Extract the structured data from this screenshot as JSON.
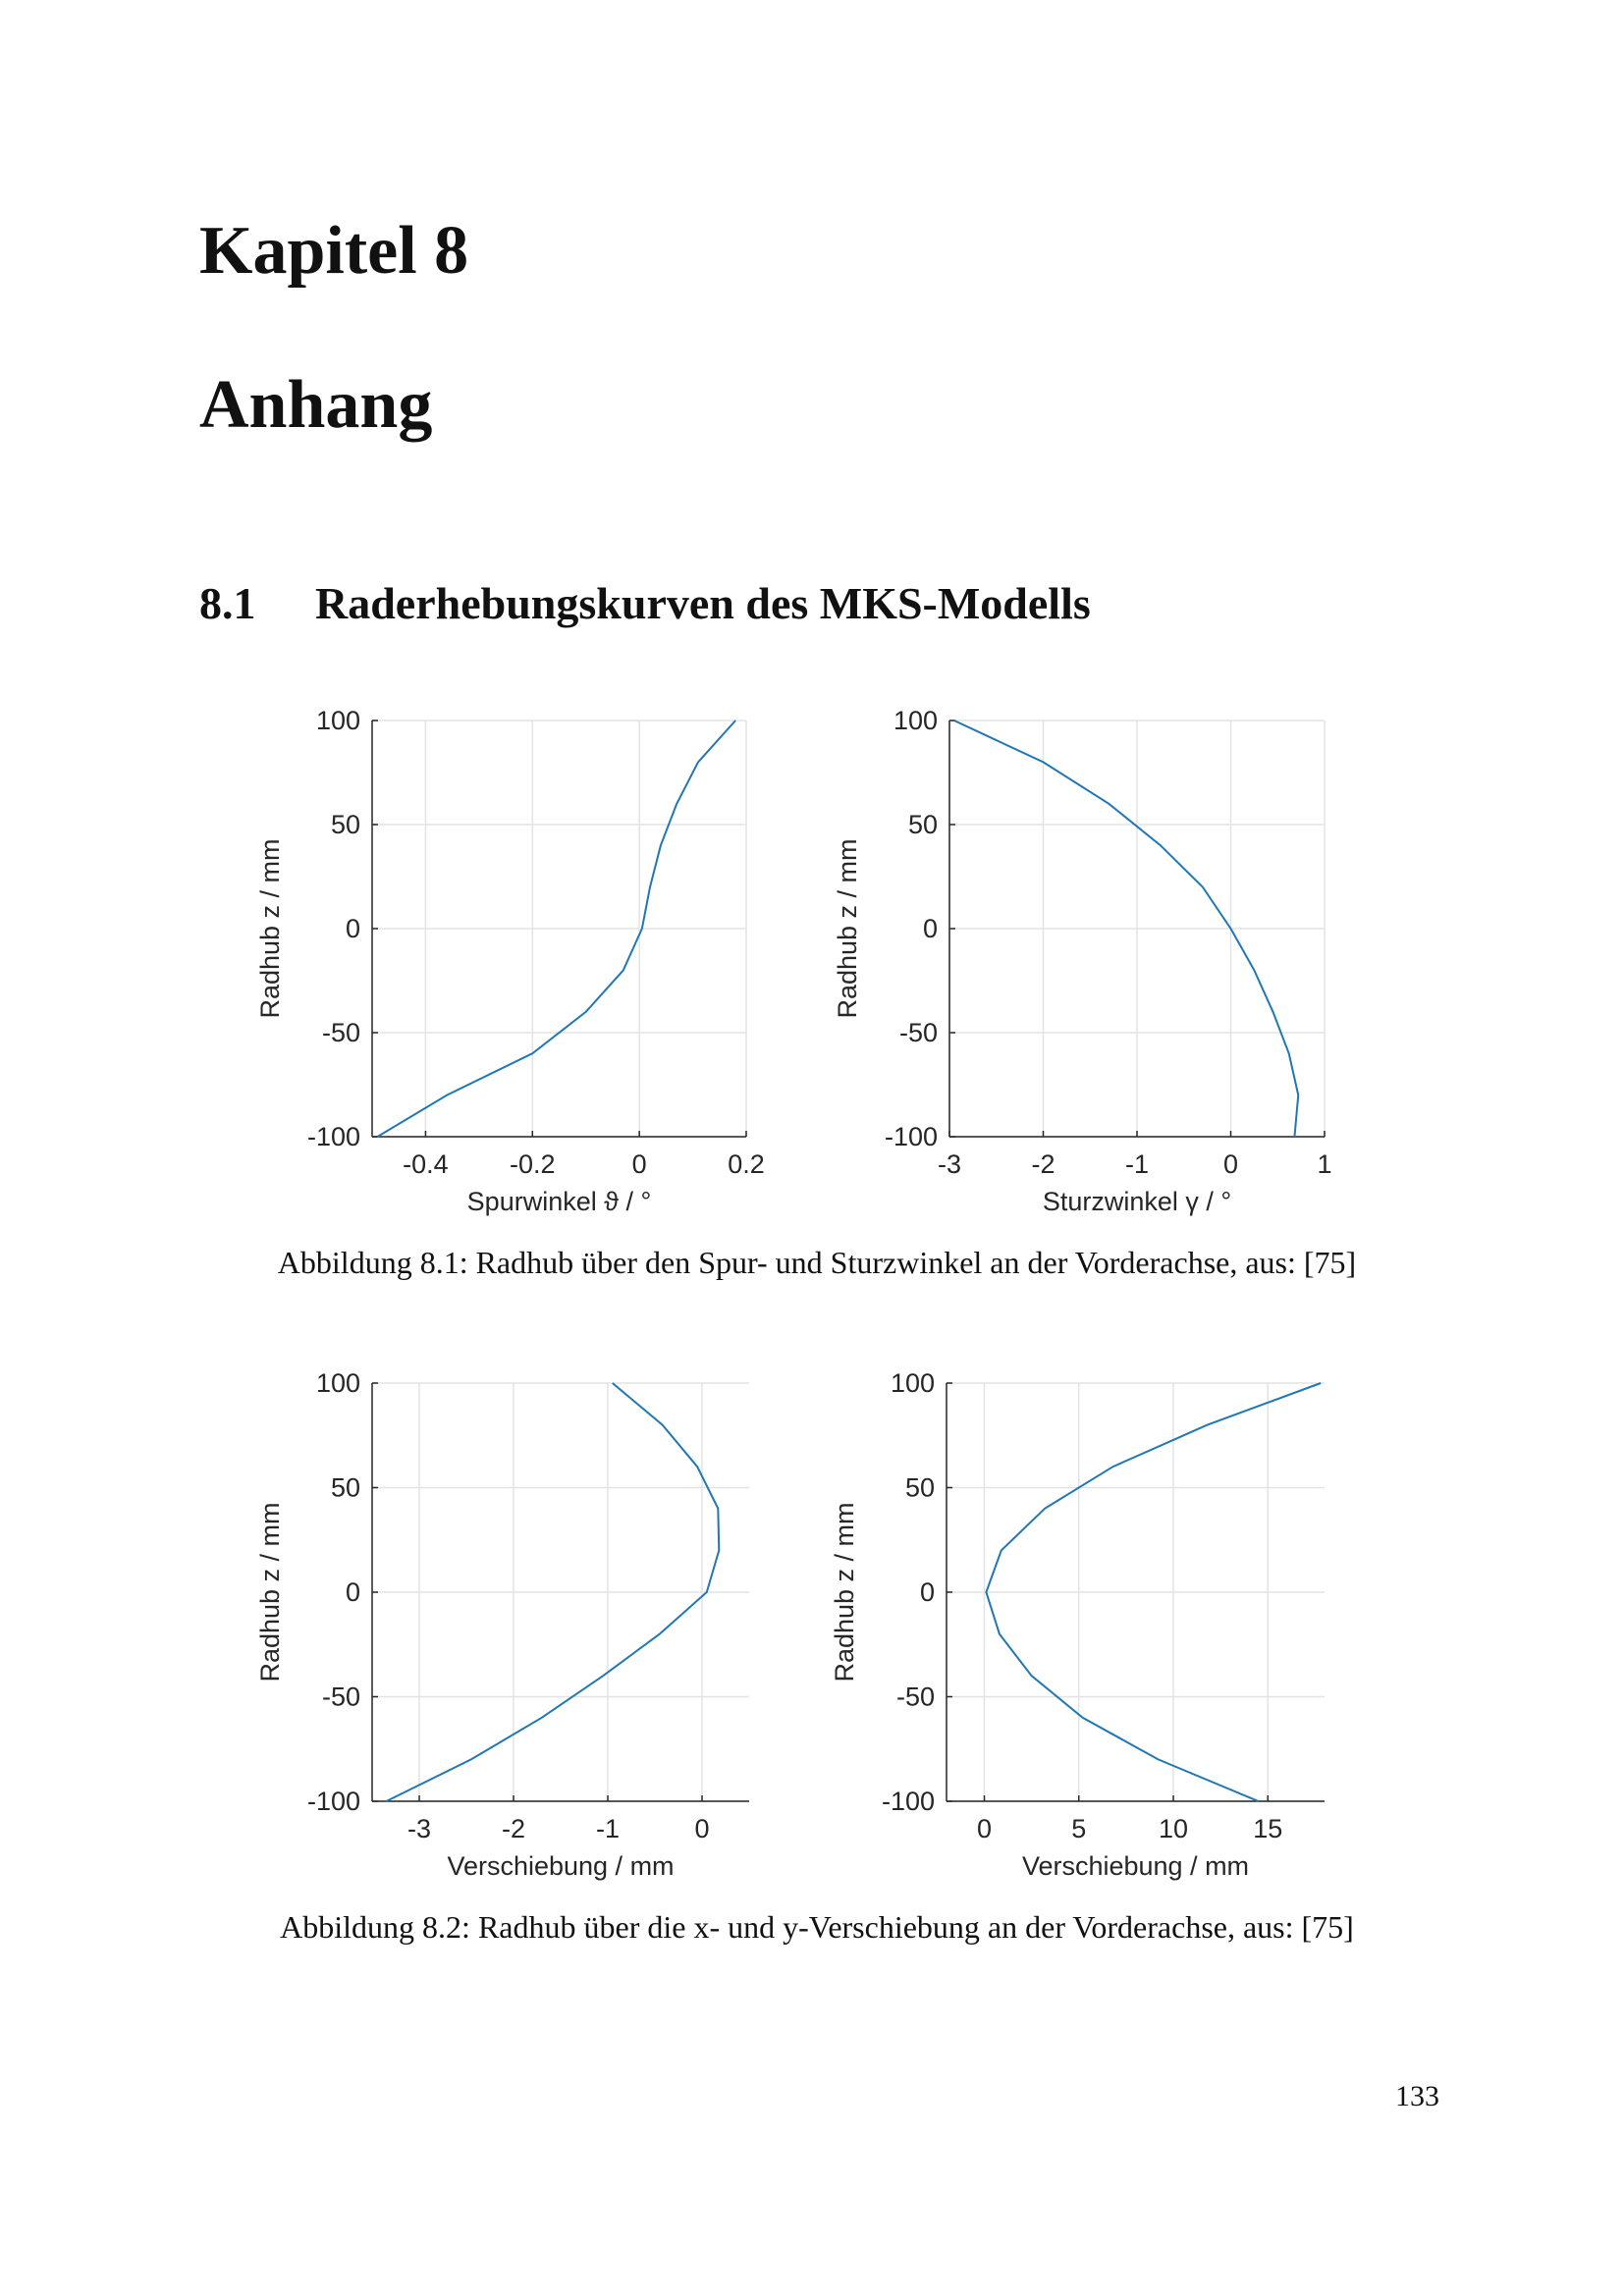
{
  "chapter_label": "Kapitel 8",
  "chapter_title": "Anhang",
  "section_number": "8.1",
  "section_title": "Raderhebungskurven des MKS-Modells",
  "chart_data": [
    {
      "type": "line",
      "x_label": "Spurwinkel ϑ / °",
      "y_label": "Radhub z / mm",
      "color": "#1f77b4",
      "grid": true,
      "x": [
        -0.49,
        -0.36,
        -0.2,
        -0.1,
        -0.03,
        0.005,
        0.02,
        0.04,
        0.07,
        0.11,
        0.18
      ],
      "values": [
        -100,
        -80,
        -60,
        -40,
        -20,
        0,
        20,
        40,
        60,
        80,
        100
      ],
      "xlim": [
        -0.5,
        0.2
      ],
      "xticks": [
        -0.4,
        -0.2,
        0,
        0.2
      ],
      "ylim": [
        -100,
        100
      ],
      "yticks": [
        -100,
        -50,
        0,
        50,
        100
      ]
    },
    {
      "type": "line",
      "x_label": "Sturzwinkel γ / °",
      "y_label": "Radhub z / mm",
      "color": "#1f77b4",
      "grid": true,
      "x": [
        0.68,
        0.72,
        0.62,
        0.45,
        0.25,
        0.0,
        -0.3,
        -0.75,
        -1.3,
        -2.0,
        -2.95
      ],
      "values": [
        -100,
        -80,
        -60,
        -40,
        -20,
        0,
        20,
        40,
        60,
        80,
        100
      ],
      "xlim": [
        -3,
        1
      ],
      "xticks": [
        -3,
        -2,
        -1,
        0,
        1
      ],
      "ylim": [
        -100,
        100
      ],
      "yticks": [
        -100,
        -50,
        0,
        50,
        100
      ]
    },
    {
      "type": "line",
      "x_label": "Verschiebung / mm",
      "y_label": "Radhub z / mm",
      "color": "#1f77b4",
      "grid": true,
      "x": [
        -3.35,
        -2.45,
        -1.7,
        -1.05,
        -0.45,
        0.05,
        0.18,
        0.17,
        -0.05,
        -0.42,
        -0.95
      ],
      "values": [
        -100,
        -80,
        -60,
        -40,
        -20,
        0,
        20,
        40,
        60,
        80,
        100
      ],
      "xlim": [
        -3.5,
        0.5
      ],
      "xticks": [
        -3,
        -2,
        -1,
        0
      ],
      "ylim": [
        -100,
        100
      ],
      "yticks": [
        -100,
        -50,
        0,
        50,
        100
      ]
    },
    {
      "type": "line",
      "x_label": "Verschiebung / mm",
      "y_label": "Radhub z / mm",
      "color": "#1f77b4",
      "grid": true,
      "x": [
        14.5,
        9.2,
        5.2,
        2.5,
        0.8,
        0.1,
        0.9,
        3.2,
        6.8,
        11.8,
        17.8
      ],
      "values": [
        -100,
        -80,
        -60,
        -40,
        -20,
        0,
        20,
        40,
        60,
        80,
        100
      ],
      "xlim": [
        -2,
        18
      ],
      "xticks": [
        0,
        5,
        10,
        15
      ],
      "ylim": [
        -100,
        100
      ],
      "yticks": [
        -100,
        -50,
        0,
        50,
        100
      ]
    }
  ],
  "captions": [
    "Abbildung 8.1: Radhub über den Spur- und Sturzwinkel an der Vorderachse, aus: [75]",
    "Abbildung 8.2: Radhub über die x- und y-Verschiebung an der Vorderachse, aus: [75]"
  ],
  "page_number": "133"
}
